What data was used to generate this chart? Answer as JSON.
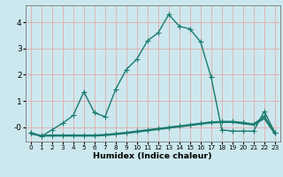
{
  "title": "",
  "xlabel": "Humidex (Indice chaleur)",
  "ylabel": "",
  "bg_color": "#cce8ee",
  "grid_color": "#e8a0a0",
  "line_color": "#1a7a6e",
  "x_values": [
    0,
    1,
    2,
    3,
    4,
    5,
    6,
    7,
    8,
    9,
    10,
    11,
    12,
    13,
    14,
    15,
    16,
    17,
    18,
    19,
    20,
    21,
    22,
    23
  ],
  "series1": [
    -0.2,
    -0.35,
    -0.1,
    0.15,
    0.45,
    1.35,
    0.55,
    0.4,
    1.45,
    2.2,
    2.6,
    3.3,
    3.6,
    4.3,
    3.85,
    3.75,
    3.25,
    1.9,
    -0.1,
    -0.15,
    -0.15,
    -0.15,
    0.6,
    -0.2
  ],
  "series2": [
    -0.22,
    -0.32,
    -0.3,
    -0.3,
    -0.3,
    -0.3,
    -0.3,
    -0.28,
    -0.24,
    -0.2,
    -0.15,
    -0.1,
    -0.05,
    0.0,
    0.05,
    0.1,
    0.15,
    0.2,
    0.22,
    0.22,
    0.18,
    0.12,
    0.42,
    -0.22
  ],
  "series3": [
    -0.24,
    -0.33,
    -0.32,
    -0.32,
    -0.32,
    -0.32,
    -0.32,
    -0.3,
    -0.26,
    -0.22,
    -0.17,
    -0.12,
    -0.07,
    -0.02,
    0.03,
    0.08,
    0.13,
    0.18,
    0.2,
    0.2,
    0.15,
    0.1,
    0.37,
    -0.24
  ],
  "series4": [
    -0.26,
    -0.34,
    -0.34,
    -0.34,
    -0.34,
    -0.34,
    -0.34,
    -0.32,
    -0.28,
    -0.24,
    -0.19,
    -0.14,
    -0.09,
    -0.04,
    0.01,
    0.06,
    0.11,
    0.16,
    0.18,
    0.18,
    0.13,
    0.08,
    0.32,
    -0.26
  ],
  "yticks": [
    0,
    1,
    2,
    3,
    4
  ],
  "ylim": [
    -0.55,
    4.65
  ],
  "xlim": [
    -0.5,
    23.5
  ],
  "markersize": 4,
  "linewidth": 1.0
}
